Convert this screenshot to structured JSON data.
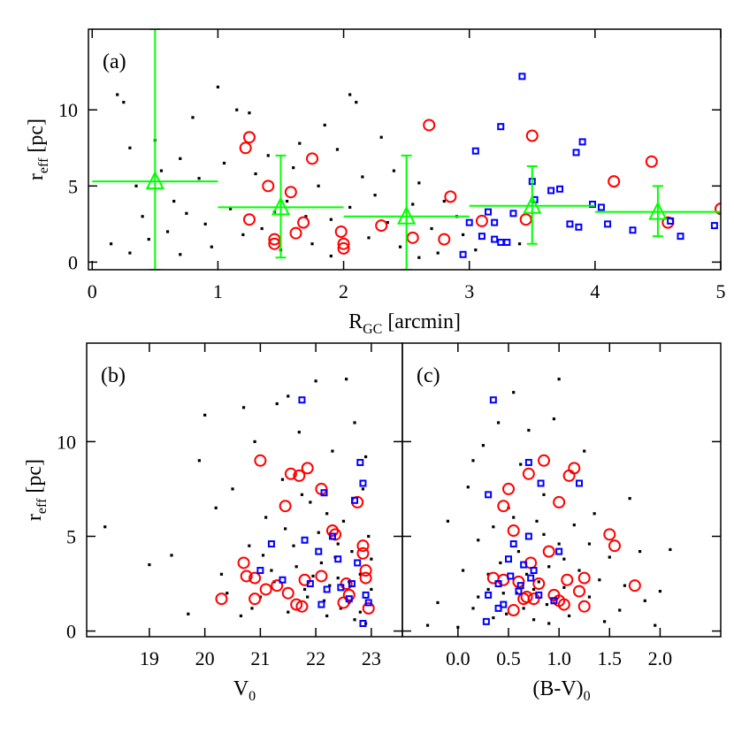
{
  "chart_data": [
    {
      "type": "scatter",
      "label": "(a)",
      "xlabel": [
        "R",
        "GC",
        " [arcmin]"
      ],
      "ylabel": [
        "r",
        "eff",
        " [pc]"
      ],
      "xlim": [
        -0.03,
        5.0
      ],
      "ylim": [
        -0.5,
        15.3
      ],
      "xticks": [
        0,
        1,
        2,
        3,
        4,
        5
      ],
      "yticks": [
        0,
        5,
        10
      ],
      "series": [
        {
          "marker": "dot",
          "color": "#000000",
          "x": [
            0.2,
            0.25,
            0.3,
            0.35,
            0.4,
            0.45,
            0.55,
            0.6,
            0.65,
            0.7,
            0.75,
            0.8,
            0.85,
            0.9,
            0.95,
            1.05,
            1.1,
            1.15,
            1.2,
            1.3,
            1.35,
            1.4,
            1.5,
            1.55,
            1.6,
            1.7,
            1.75,
            1.8,
            1.85,
            1.9,
            1.95,
            2.05,
            2.1,
            2.15,
            2.2,
            2.25,
            2.35,
            2.4,
            2.45,
            2.55,
            2.6,
            2.7,
            2.75,
            2.8,
            2.9,
            2.95,
            0.15,
            0.3,
            1.0,
            1.65,
            2.3,
            0.5,
            1.25,
            2.05,
            2.6,
            3.05,
            3.4,
            0.7,
            1.45,
            1.9
          ],
          "y": [
            11,
            10.5,
            7.5,
            5,
            3,
            1.5,
            6,
            2,
            4,
            0.5,
            3.2,
            9.5,
            5.5,
            2.5,
            1,
            6.5,
            3.5,
            10,
            1.8,
            5.8,
            2.2,
            7,
            0.8,
            4,
            6.2,
            3,
            1.2,
            5,
            9,
            2.8,
            7.4,
            3.6,
            10.5,
            5.6,
            1.6,
            4.4,
            2.6,
            6,
            1,
            3.8,
            5.2,
            2.2,
            0.6,
            4,
            3,
            1.8,
            1.2,
            0.6,
            11.5,
            7.8,
            8.2,
            8,
            9.8,
            11,
            0.3,
            0.8,
            1.2,
            6.8,
            3.3,
            0.4
          ]
        },
        {
          "marker": "circle",
          "color": "#ff0000",
          "x": [
            1.22,
            1.25,
            1.25,
            1.45,
            1.45,
            1.68,
            1.58,
            1.4,
            1.75,
            1.62,
            1.98,
            2.0,
            2.0,
            2.3,
            2.55,
            2.68,
            2.8,
            2.85,
            3.1,
            3.45,
            3.5,
            4.15,
            4.45,
            4.58,
            5.0
          ],
          "y": [
            7.5,
            8.2,
            2.8,
            1.5,
            1.2,
            2.6,
            4.6,
            5.0,
            6.8,
            1.9,
            2.0,
            1.2,
            0.9,
            2.4,
            1.6,
            9.0,
            1.5,
            4.3,
            2.7,
            2.8,
            8.3,
            5.3,
            6.6,
            2.6,
            3.5
          ]
        },
        {
          "marker": "square",
          "color": "#0000ff",
          "x": [
            3.25,
            3.42,
            3.05,
            3.1,
            3.2,
            3.25,
            3.3,
            3.2,
            3.35,
            3.5,
            3.52,
            3.65,
            3.72,
            3.8,
            3.87,
            3.85,
            3.9,
            3.98,
            4.05,
            4.1,
            4.3,
            4.6,
            4.68,
            4.95,
            2.95,
            3.15,
            3.0
          ],
          "y": [
            8.9,
            12.2,
            7.3,
            1.7,
            1.5,
            1.3,
            1.3,
            2.6,
            3.2,
            5.3,
            4.1,
            4.7,
            4.8,
            2.5,
            2.3,
            7.2,
            7.9,
            3.8,
            3.6,
            2.5,
            2.1,
            2.7,
            1.7,
            2.4,
            0.5,
            3.3,
            2.6
          ]
        },
        {
          "marker": "triangle",
          "color": "#00ff00",
          "x": [
            0.5,
            1.5,
            2.5,
            3.5,
            4.5
          ],
          "y": [
            5.3,
            3.6,
            3.0,
            3.7,
            3.3
          ],
          "xlow": [
            0,
            1,
            2,
            3,
            4
          ],
          "xhigh": [
            1,
            2,
            3,
            4,
            5
          ],
          "ylow": [
            -0.5,
            0.3,
            -0.5,
            1.2,
            1.7
          ],
          "yhigh": [
            15.3,
            7.0,
            7.0,
            6.3,
            5.0
          ]
        }
      ]
    },
    {
      "type": "scatter",
      "label": "(b)",
      "xlabel": [
        "V",
        "0",
        ""
      ],
      "ylabel": [
        "r",
        "eff",
        " [pc]"
      ],
      "xlim": [
        17.87,
        23.56
      ],
      "ylim": [
        -0.3,
        15.2
      ],
      "xticks": [
        19,
        20,
        21,
        22,
        23
      ],
      "yticks": [
        0,
        5,
        10
      ],
      "series": [
        {
          "marker": "dot",
          "color": "#000000",
          "x": [
            18.2,
            19.0,
            19.4,
            19.9,
            20.0,
            20.2,
            20.4,
            20.5,
            20.7,
            20.8,
            20.9,
            21.0,
            21.1,
            21.2,
            21.3,
            21.4,
            21.5,
            21.6,
            21.7,
            21.8,
            21.9,
            22.0,
            22.1,
            22.2,
            22.3,
            22.4,
            22.5,
            22.6,
            22.7,
            22.8,
            22.9,
            23.0,
            22.85,
            22.65,
            22.45,
            22.25,
            22.05,
            21.85,
            21.65,
            21.45,
            21.25,
            21.05,
            20.85,
            20.65,
            22.95,
            22.55,
            22.35,
            22.15,
            21.95,
            21.75,
            22.8,
            22.6,
            22.4,
            22.2,
            23.0,
            22.7,
            21.5,
            20.3,
            19.7,
            22.9
          ],
          "y": [
            5.5,
            3.5,
            4,
            9,
            11.4,
            6.5,
            2,
            7.5,
            11.8,
            4.5,
            10,
            1.8,
            6,
            3.2,
            12,
            8,
            1,
            4.5,
            10.5,
            2.2,
            6.8,
            13.2,
            3.6,
            0.8,
            9.5,
            2.8,
            5.8,
            1.5,
            11,
            3,
            0.4,
            2.2,
            7.5,
            4.2,
            1.2,
            2.4,
            5.2,
            1.8,
            3.4,
            5.4,
            2.6,
            4,
            1.2,
            0.8,
            5,
            13.3,
            3.9,
            1.6,
            2.9,
            7.2,
            1,
            2.6,
            4.6,
            6.2,
            3.8,
            0.6,
            12.4,
            3,
            0.9,
            9.2
          ]
        },
        {
          "marker": "circle",
          "color": "#ff0000",
          "x": [
            20.3,
            20.7,
            20.75,
            20.9,
            20.9,
            21.0,
            21.1,
            21.3,
            21.45,
            21.55,
            21.7,
            21.85,
            21.5,
            21.65,
            21.75,
            21.8,
            22.1,
            22.3,
            22.35,
            22.55,
            22.6,
            22.75,
            22.85,
            22.85,
            22.9,
            22.95,
            22.1,
            22.5,
            22.9
          ],
          "y": [
            1.7,
            3.6,
            2.9,
            2.8,
            1.7,
            9.0,
            2.2,
            2.4,
            6.6,
            8.3,
            8.2,
            8.6,
            2.0,
            1.4,
            1.3,
            2.7,
            7.5,
            5.3,
            5.1,
            2.5,
            1.9,
            6.8,
            4.5,
            4.1,
            2.8,
            1.2,
            2.9,
            1.5,
            3.2
          ]
        },
        {
          "marker": "square",
          "color": "#0000ff",
          "x": [
            21.75,
            21.2,
            21.0,
            21.8,
            22.05,
            22.15,
            22.4,
            22.65,
            22.75,
            22.8,
            22.85,
            22.9,
            22.85,
            22.6,
            22.45,
            22.1,
            22.3,
            22.7,
            21.4,
            22.2,
            22.95,
            21.9
          ],
          "y": [
            12.2,
            4.6,
            3.2,
            4.8,
            4.2,
            7.3,
            3.8,
            2.5,
            3.6,
            8.9,
            7.8,
            1.9,
            0.4,
            1.7,
            2.3,
            1.4,
            5.0,
            6.9,
            2.7,
            2.2,
            1.5,
            2.5
          ]
        }
      ]
    },
    {
      "type": "scatter",
      "label": "(c)",
      "xlabel": [
        "(B-V)",
        "0",
        ""
      ],
      "xlim": [
        -0.55,
        2.6
      ],
      "ylim": [
        -0.3,
        15.2
      ],
      "xticks": [
        {
          "value": 0,
          "label": "0.0"
        },
        {
          "value": 0.5,
          "label": "0.5"
        },
        {
          "value": 1,
          "label": "1.0"
        },
        {
          "value": 1.5,
          "label": "1.5"
        },
        {
          "value": 2,
          "label": "2.0"
        }
      ],
      "series": [
        {
          "marker": "dot",
          "color": "#000000",
          "x": [
            -0.3,
            -0.2,
            -0.1,
            0.0,
            0.05,
            0.1,
            0.15,
            0.2,
            0.25,
            0.3,
            0.35,
            0.4,
            0.42,
            0.48,
            0.5,
            0.55,
            0.58,
            0.6,
            0.62,
            0.68,
            0.7,
            0.75,
            0.78,
            0.8,
            0.85,
            0.88,
            0.9,
            0.95,
            1.0,
            1.05,
            1.1,
            1.15,
            1.2,
            1.25,
            1.3,
            1.35,
            1.4,
            1.45,
            1.5,
            1.6,
            1.65,
            1.7,
            1.8,
            1.85,
            1.95,
            2.0,
            2.1,
            0.2,
            0.3,
            0.45,
            0.65,
            0.9,
            1.05,
            0.15,
            0.55,
            0.85,
            1.3,
            0.35,
            0.75,
            1.0
          ],
          "y": [
            0.3,
            1.5,
            5.8,
            0.2,
            3.2,
            7.6,
            1.2,
            4.8,
            9.8,
            2.2,
            5.5,
            11,
            3.6,
            0.9,
            6.5,
            12.6,
            2.0,
            4.2,
            8.8,
            3.0,
            10.6,
            0.6,
            5.8,
            2.6,
            7.2,
            1.4,
            3.4,
            11.2,
            4.6,
            2.3,
            0.8,
            5.6,
            3.2,
            9.5,
            1.8,
            6.2,
            2.7,
            0.5,
            3.9,
            1.1,
            2.4,
            7.0,
            4.2,
            1.6,
            0.3,
            2.1,
            4.3,
            1.8,
            3.0,
            2.0,
            1.2,
            0.4,
            3.8,
            9.0,
            6.0,
            5.1,
            4.6,
            0.7,
            2.2,
            13.3
          ]
        },
        {
          "marker": "circle",
          "color": "#ff0000",
          "x": [
            0.35,
            0.45,
            0.5,
            0.45,
            0.55,
            0.6,
            0.65,
            0.7,
            0.72,
            0.75,
            0.8,
            0.85,
            0.9,
            0.95,
            1.0,
            1.05,
            1.08,
            1.1,
            1.15,
            1.2,
            1.25,
            1.25,
            1.5,
            1.55,
            1.75,
            0.55,
            1.0,
            0.68
          ],
          "y": [
            2.8,
            2.7,
            7.5,
            6.6,
            5.3,
            2.6,
            1.7,
            8.3,
            3.6,
            1.7,
            2.5,
            9.0,
            4.2,
            1.9,
            6.8,
            1.4,
            2.7,
            8.2,
            8.6,
            2.1,
            2.8,
            1.3,
            5.1,
            4.5,
            2.4,
            1.1,
            1.6,
            1.8
          ]
        },
        {
          "marker": "square",
          "color": "#0000ff",
          "x": [
            0.35,
            0.3,
            0.4,
            0.45,
            0.5,
            0.55,
            0.6,
            0.65,
            0.7,
            0.7,
            0.75,
            0.8,
            0.82,
            0.28,
            0.3,
            1.0,
            1.2,
            0.95,
            0.52,
            0.62,
            0.72,
            0.4
          ],
          "y": [
            12.2,
            1.9,
            2.5,
            1.4,
            3.8,
            4.6,
            2.1,
            3.5,
            8.9,
            5.0,
            3.2,
            1.9,
            7.8,
            0.5,
            7.2,
            4.2,
            7.8,
            1.6,
            2.9,
            2.4,
            2.8,
            1.2
          ]
        }
      ]
    }
  ]
}
